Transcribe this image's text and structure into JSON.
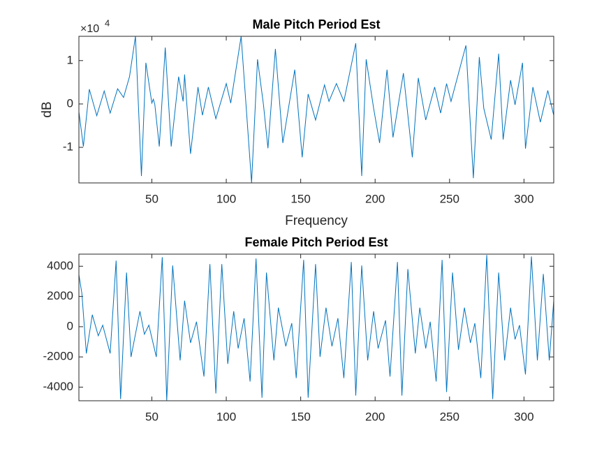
{
  "chart_data": [
    {
      "type": "line",
      "title": "Male Pitch Period Est",
      "x_label": "Frequency",
      "y_label": "dB",
      "y_multiplier": "×10",
      "y_multiplier_exponent": "4",
      "xlim": [
        1,
        320
      ],
      "ylim": [
        -18200,
        15600
      ],
      "xticks": [
        50,
        100,
        150,
        200,
        250,
        300
      ],
      "yticks": [
        {
          "value": -10000,
          "label": "-1"
        },
        {
          "value": 0,
          "label": "0"
        },
        {
          "value": 10000,
          "label": "1"
        }
      ],
      "grid": false,
      "series": [
        {
          "color": "#0072bd",
          "x": [
            1,
            4,
            8,
            13,
            18,
            22,
            27,
            31,
            35,
            39,
            43,
            46,
            50,
            51,
            52,
            55,
            59,
            63,
            66,
            68,
            71,
            72,
            76,
            81,
            84,
            88,
            93,
            100,
            103,
            110,
            117,
            121,
            125,
            128,
            133,
            138,
            146,
            151,
            155,
            160,
            166,
            169,
            174,
            179,
            187,
            191,
            194,
            199,
            203,
            208,
            212,
            219,
            225,
            229,
            234,
            240,
            244,
            248,
            251,
            261,
            266,
            270,
            273,
            278,
            283,
            286,
            291,
            294,
            299,
            301,
            306,
            311,
            316,
            320
          ],
          "values": [
            -1800,
            -9800,
            3400,
            -2700,
            3000,
            -2100,
            3500,
            1500,
            6300,
            15600,
            -16600,
            9500,
            200,
            1100,
            -100,
            -9800,
            13000,
            -9800,
            -200,
            6300,
            600,
            6800,
            -11500,
            3900,
            -2600,
            3900,
            -3400,
            4700,
            200,
            15600,
            -18200,
            10300,
            -200,
            -10200,
            12700,
            -9000,
            7900,
            -12300,
            2300,
            -3700,
            4400,
            600,
            4700,
            600,
            14000,
            -16600,
            10300,
            -1000,
            -9000,
            7900,
            -7700,
            7100,
            -12300,
            6000,
            -3700,
            3900,
            -2100,
            4700,
            600,
            13500,
            -17100,
            10800,
            -1000,
            -8200,
            11600,
            -8200,
            5500,
            -200,
            9500,
            -10300,
            3900,
            -4200,
            3100,
            -2600
          ]
        }
      ]
    },
    {
      "type": "line",
      "title": "Female Pitch Period Est",
      "xlim": [
        1,
        320
      ],
      "ylim": [
        -4900,
        4800
      ],
      "xticks": [
        50,
        100,
        150,
        200,
        250,
        300
      ],
      "yticks": [
        -4000,
        -2000,
        0,
        2000,
        4000
      ],
      "grid": false,
      "series": [
        {
          "color": "#0072bd",
          "x": [
            1,
            3,
            6,
            10,
            14,
            17,
            22,
            26,
            29,
            33,
            36,
            42,
            45,
            48,
            53,
            57,
            60,
            64,
            69,
            72,
            76,
            80,
            85,
            89,
            93,
            97,
            101,
            105,
            108,
            112,
            116,
            120,
            124,
            127,
            132,
            135,
            140,
            144,
            147,
            152,
            155,
            160,
            163,
            167,
            171,
            175,
            179,
            184,
            187,
            191,
            195,
            199,
            202,
            207,
            210,
            215,
            218,
            222,
            227,
            230,
            234,
            237,
            241,
            245,
            248,
            252,
            256,
            260,
            264,
            267,
            271,
            275,
            279,
            283,
            287,
            291,
            294,
            297,
            301,
            305,
            309,
            313,
            317,
            320
          ],
          "values": [
            3440,
            2200,
            -1770,
            790,
            -600,
            100,
            -1770,
            4370,
            -4790,
            3580,
            -2000,
            1020,
            -500,
            100,
            -2000,
            4600,
            -4880,
            4050,
            -2230,
            1720,
            -1070,
            330,
            -3300,
            4140,
            -4420,
            4140,
            -2460,
            1020,
            -1440,
            560,
            -3630,
            4510,
            -4700,
            3580,
            -2230,
            1260,
            -1300,
            230,
            -3400,
            4420,
            -4700,
            4140,
            -2000,
            1260,
            -1300,
            560,
            -3400,
            4280,
            -4560,
            4050,
            -2230,
            1020,
            -1440,
            420,
            -3300,
            4280,
            -4560,
            3810,
            -1770,
            1260,
            -1440,
            330,
            -3630,
            4420,
            -4320,
            3580,
            -1530,
            1260,
            -1070,
            230,
            -3400,
            4740,
            -4790,
            3580,
            -2230,
            1260,
            -840,
            100,
            -3160,
            4650,
            -2230,
            3490,
            -2230,
            1720
          ]
        }
      ]
    }
  ]
}
